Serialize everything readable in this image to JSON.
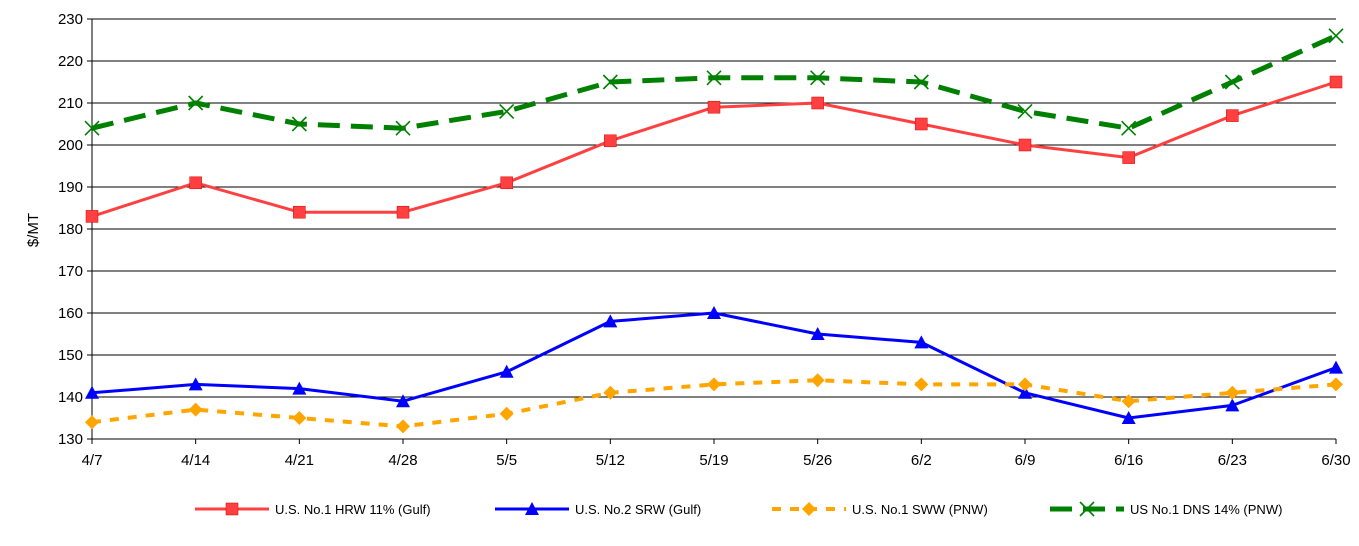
{
  "chart_data": {
    "type": "line",
    "title": "",
    "xlabel": "",
    "ylabel": "$/MT",
    "categories": [
      "4/7",
      "4/14",
      "4/21",
      "4/28",
      "5/5",
      "5/12",
      "5/19",
      "5/26",
      "6/2",
      "6/9",
      "6/16",
      "6/23",
      "6/30"
    ],
    "ylim": [
      130,
      230
    ],
    "yticks": [
      130,
      140,
      150,
      160,
      170,
      180,
      190,
      200,
      210,
      220,
      230
    ],
    "grid": true,
    "legend_position": "bottom",
    "series": [
      {
        "name": "U.S. No.1 HRW 11% (Gulf)",
        "color": "#FF4040",
        "marker": "square",
        "dash": "solid",
        "values": [
          183,
          191,
          184,
          184,
          191,
          201,
          209,
          210,
          205,
          200,
          197,
          207,
          215
        ]
      },
      {
        "name": "U.S. No.2 SRW (Gulf)",
        "color": "#0000FF",
        "marker": "triangle",
        "dash": "solid",
        "values": [
          141,
          143,
          142,
          139,
          146,
          158,
          160,
          155,
          153,
          141,
          135,
          138,
          147
        ]
      },
      {
        "name": "U.S. No.1 SWW (PNW)",
        "color": "#FFA500",
        "marker": "diamond",
        "dash": "dashed",
        "values": [
          134,
          137,
          135,
          133,
          136,
          141,
          143,
          144,
          143,
          143,
          139,
          141,
          143
        ]
      },
      {
        "name": "US No.1 DNS 14% (PNW)",
        "color": "#008000",
        "marker": "x",
        "dash": "long-dashed",
        "values": [
          204,
          210,
          205,
          204,
          208,
          215,
          216,
          216,
          215,
          208,
          204,
          215,
          226
        ]
      }
    ]
  }
}
